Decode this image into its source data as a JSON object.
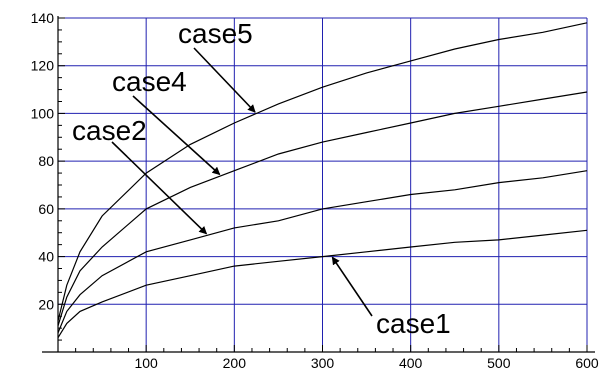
{
  "chart_data": {
    "type": "line",
    "title": "",
    "xlabel": "",
    "ylabel": "",
    "xlim": [
      0,
      600
    ],
    "ylim": [
      0,
      140
    ],
    "xticks": [
      100,
      200,
      300,
      400,
      500,
      600
    ],
    "yticks": [
      20,
      40,
      60,
      80,
      100,
      120,
      140
    ],
    "grid": true,
    "colors": {
      "grid": "#2020b0",
      "line": "#000000",
      "axis": "#000000"
    },
    "x": [
      0,
      10,
      25,
      50,
      100,
      150,
      200,
      250,
      300,
      350,
      400,
      450,
      500,
      550,
      600
    ],
    "series": [
      {
        "name": "case1",
        "values": [
          6,
          12,
          17,
          21,
          28,
          32,
          36,
          38,
          40,
          42,
          44,
          46,
          47,
          49,
          51
        ]
      },
      {
        "name": "case2",
        "values": [
          8,
          17,
          24,
          32,
          42,
          47,
          52,
          55,
          60,
          63,
          66,
          68,
          71,
          73,
          76
        ]
      },
      {
        "name": "case4",
        "values": [
          11,
          23,
          34,
          44,
          60,
          69,
          76,
          83,
          88,
          92,
          96,
          100,
          103,
          106,
          109
        ]
      },
      {
        "name": "case5",
        "values": [
          13,
          28,
          42,
          57,
          75,
          87,
          96,
          104,
          111,
          117,
          122,
          127,
          131,
          134,
          138
        ]
      }
    ],
    "annotations": [
      {
        "text": "case5",
        "series": "case5",
        "at_x": 225
      },
      {
        "text": "case4",
        "series": "case4",
        "at_x": 185
      },
      {
        "text": "case2",
        "series": "case2",
        "at_x": 170
      },
      {
        "text": "case1",
        "series": "case1",
        "at_x": 310
      }
    ]
  }
}
